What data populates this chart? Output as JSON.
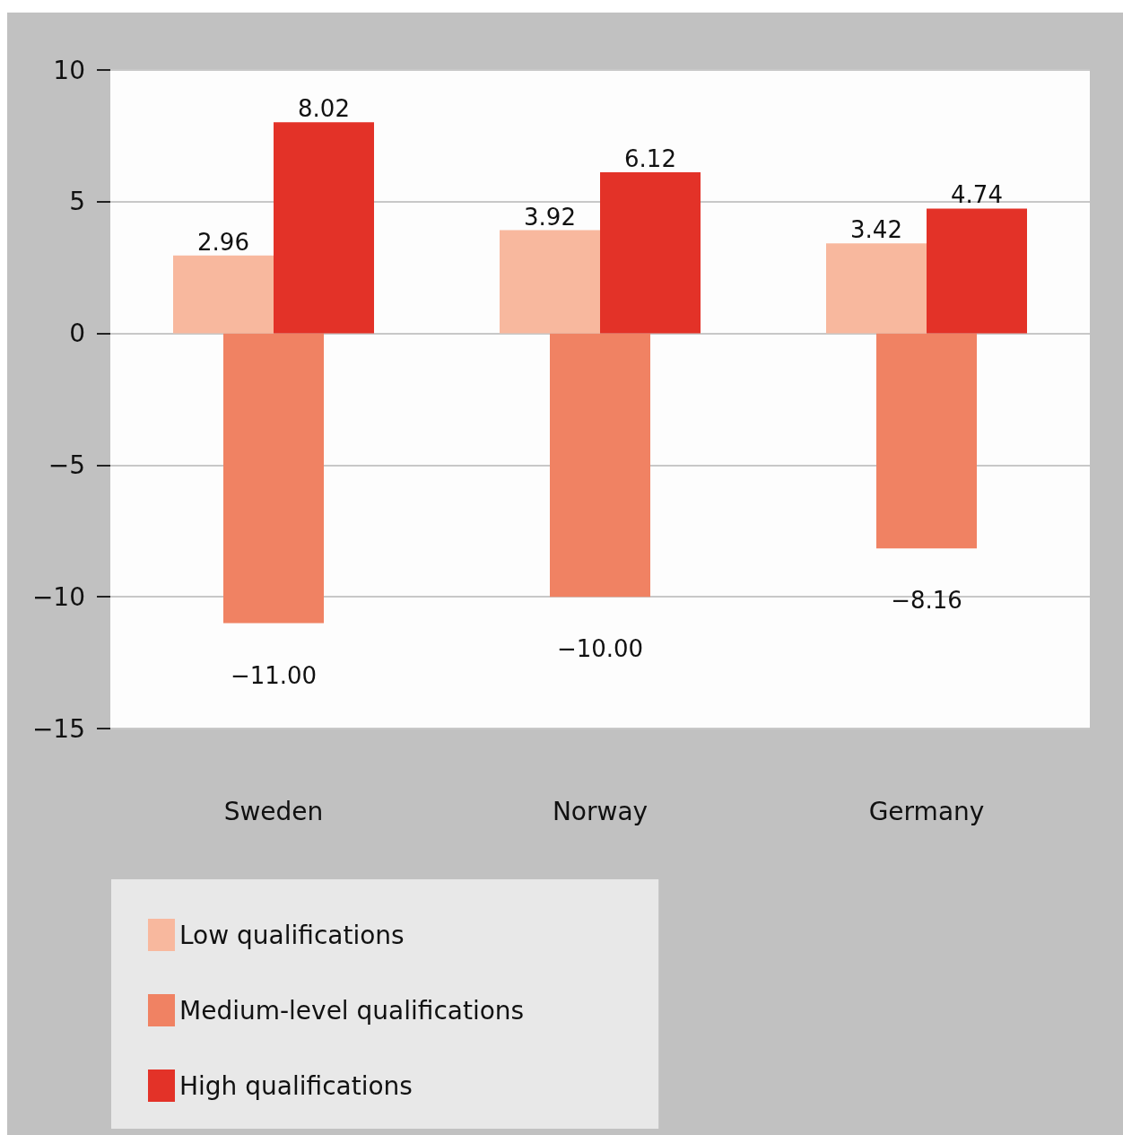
{
  "chart_data": {
    "type": "bar",
    "categories": [
      "Sweden",
      "Norway",
      "Germany"
    ],
    "series": [
      {
        "name": "Low qualifications",
        "color": "#f8b89e",
        "values": [
          2.96,
          3.92,
          3.42
        ],
        "value_labels": [
          "2.96",
          "3.92",
          "3.42"
        ]
      },
      {
        "name": "Medium-level qualifications",
        "color": "#f08263",
        "values": [
          -11.0,
          -10.0,
          -8.16
        ],
        "value_labels": [
          "−11.00",
          "−10.00",
          "−8.16"
        ]
      },
      {
        "name": "High qualifications",
        "color": "#e33228",
        "values": [
          8.02,
          6.12,
          4.74
        ],
        "value_labels": [
          "8.02",
          "6.12",
          "4.74"
        ]
      }
    ],
    "ylim": [
      -15,
      10
    ],
    "yticks": [
      {
        "value": -15,
        "label": "−15"
      },
      {
        "value": -10,
        "label": "−10"
      },
      {
        "value": -5,
        "label": "−5"
      },
      0,
      5,
      10
    ],
    "grid": "y",
    "legend": "bottom left"
  }
}
